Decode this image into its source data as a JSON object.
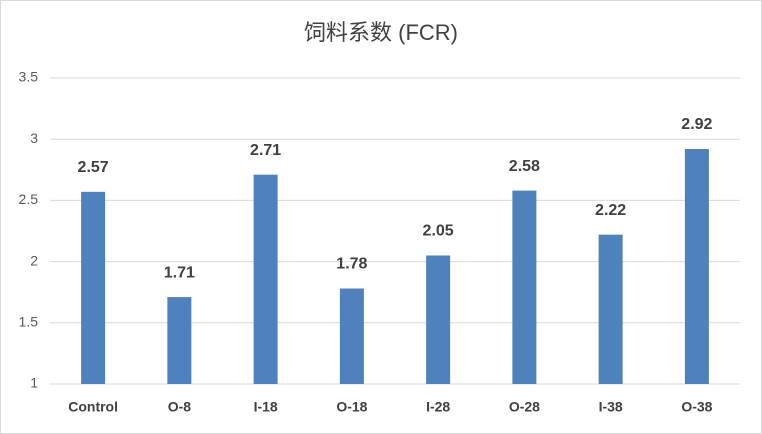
{
  "chart_data": {
    "type": "bar",
    "title": "饲料系数 (FCR)",
    "categories": [
      "Control",
      "O-8",
      "I-18",
      "O-18",
      "I-28",
      "O-28",
      "I-38",
      "O-38"
    ],
    "values": [
      2.57,
      1.71,
      2.71,
      1.78,
      2.05,
      2.58,
      2.22,
      2.92
    ],
    "color": "#4f81bd",
    "ylim": [
      1,
      3.5
    ],
    "yticks": [
      1,
      1.5,
      2,
      2.5,
      3,
      3.5
    ],
    "grid": true
  }
}
